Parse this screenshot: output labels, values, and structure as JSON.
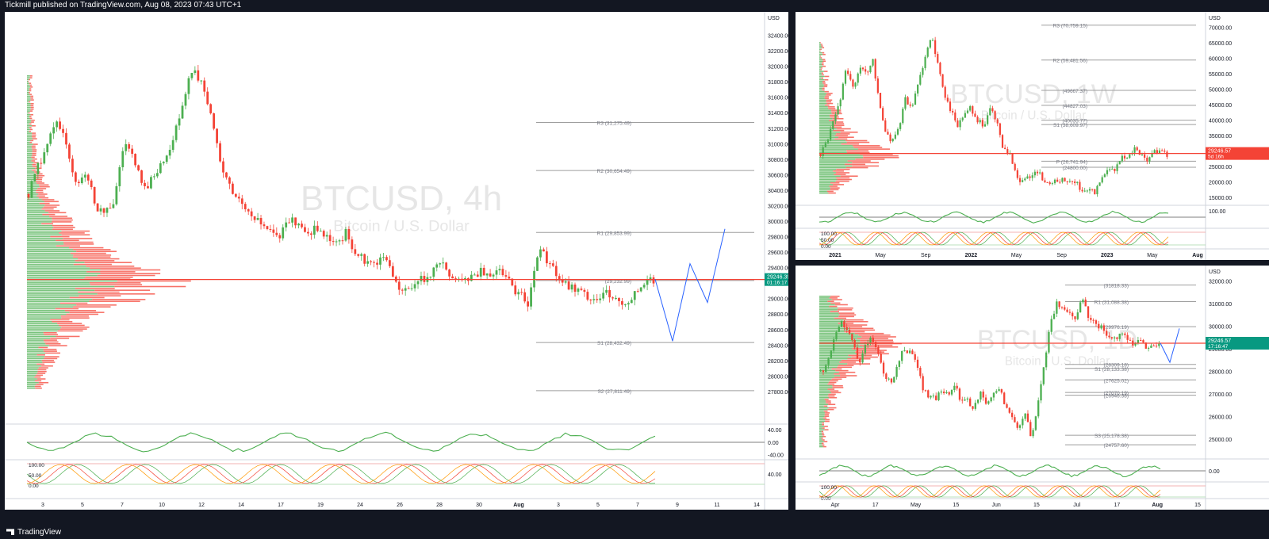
{
  "header": {
    "publisher_text": "Tickmill published on TradingView.com, Aug 08, 2023 07:43 UTC+1"
  },
  "footer": {
    "brand": "TradingView"
  },
  "colors": {
    "up": "#26a69a",
    "down": "#ef5350",
    "green": "#4caf50",
    "red": "#f44336",
    "grid": "#ececec"
  },
  "chart_data": [
    {
      "type": "candlestick",
      "symbol_watermark": "BTCUSD, 4h",
      "subtitle_watermark": "Bitcoin / U.S. Dollar",
      "currency": "USD",
      "ylim": [
        27400,
        32600
      ],
      "y_ticks": [
        "32400.00",
        "32200.00",
        "32000.00",
        "31800.00",
        "31600.00",
        "31400.00",
        "31200.00",
        "31000.00",
        "30800.00",
        "30600.00",
        "30400.00",
        "30200.00",
        "30000.00",
        "29800.00",
        "29600.00",
        "29400.00",
        "29200.00",
        "29000.00",
        "28800.00",
        "28600.00",
        "28400.00",
        "28200.00",
        "28000.00",
        "27800.00"
      ],
      "x_ticks": [
        "3",
        "5",
        "7",
        "10",
        "12",
        "14",
        "17",
        "19",
        "24",
        "26",
        "28",
        "30",
        "Aug",
        "3",
        "5",
        "7",
        "9",
        "11",
        "14"
      ],
      "pivot_levels": [
        {
          "label": "R3 (31,275.49)",
          "value": 31275
        },
        {
          "label": "R2 (30,654.49)",
          "value": 30654
        },
        {
          "label": "R1 (29,853.99)",
          "value": 29854
        },
        {
          "label": "(29,232.99)",
          "value": 29233
        },
        {
          "label": "S1 (28,432.49)",
          "value": 28432
        },
        {
          "label": "S2 (27,811.49)",
          "value": 27811
        }
      ],
      "last_price_label": "29246.39",
      "countdown_label": "01:16:17",
      "last_price": 29246,
      "close_path": [
        30350,
        30700,
        31000,
        31350,
        30900,
        30500,
        30650,
        30200,
        30100,
        30300,
        31050,
        30750,
        30400,
        30600,
        30800,
        31000,
        31500,
        31950,
        31800,
        31350,
        30700,
        30400,
        30250,
        30150,
        30000,
        29900,
        29800,
        30050,
        29950,
        29850,
        29900,
        29800,
        29700,
        29850,
        29600,
        29500,
        29450,
        29600,
        29200,
        29150,
        29200,
        29250,
        29350,
        29450,
        29300,
        29250,
        29300,
        29350,
        29250,
        29400,
        29200,
        29050,
        28950,
        29650,
        29500,
        29300,
        29150,
        29100,
        29050,
        29000,
        29100,
        29000,
        28950,
        29050,
        29150,
        29250
      ],
      "projection_path": [
        29250,
        28450,
        29450,
        28950,
        29900
      ],
      "rsi_ticks": [
        "40.00",
        "0.00",
        "-40.00"
      ],
      "stoch_ticks": [
        "100.00",
        "50.00",
        "0.00"
      ],
      "stoch_right_tick": "40.00"
    },
    {
      "type": "candlestick",
      "symbol_watermark": "BTCUSD, 1W",
      "subtitle_watermark": "Bitcoin / U.S. Dollar",
      "currency": "USD",
      "ylim": [
        13000,
        73000
      ],
      "y_ticks": [
        "70000.00",
        "65000.00",
        "60000.00",
        "55000.00",
        "50000.00",
        "45000.00",
        "40000.00",
        "35000.00",
        "30000.00",
        "25000.00",
        "20000.00",
        "15000.00"
      ],
      "x_ticks": [
        "2021",
        "May",
        "Sep",
        "2022",
        "May",
        "Sep",
        "2023",
        "May",
        "Aug"
      ],
      "pivot_levels": [
        {
          "label": "R3 (70,759.15)",
          "value": 70759
        },
        {
          "label": "R2 (59,481.56)",
          "value": 59481
        },
        {
          "label": "(49667.37)",
          "value": 49667
        },
        {
          "label": "(44827.03)",
          "value": 44827
        },
        {
          "label": "(40035.77)",
          "value": 40035
        },
        {
          "label": "S1 (38,609.97)",
          "value": 38610
        },
        {
          "label": "P (26,741.94)",
          "value": 26742
        },
        {
          "label": "(24800.00)",
          "value": 24800
        }
      ],
      "last_price_label": "29246.57",
      "countdown_label": "5d 16h",
      "last_price": 29246,
      "close_path": [
        29000,
        33000,
        40000,
        47000,
        57000,
        50000,
        58000,
        55000,
        60000,
        45000,
        36000,
        33000,
        38000,
        47000,
        44000,
        52000,
        61000,
        67000,
        57000,
        48000,
        43000,
        38000,
        42000,
        44000,
        40000,
        38000,
        44000,
        39000,
        30000,
        29000,
        21000,
        20000,
        22000,
        24000,
        21000,
        19500,
        20000,
        21000,
        19500,
        20500,
        16500,
        17000,
        16800,
        21000,
        23500,
        24000,
        28000,
        27500,
        30500,
        29500,
        27000,
        30500,
        29500,
        29000
      ],
      "rsi_tick": "100.00",
      "stoch_ticks": [
        "100.00",
        "50.00",
        "0.00"
      ]
    },
    {
      "type": "candlestick",
      "symbol_watermark": "BTCUSD, 1D",
      "subtitle_watermark": "Bitcoin / U.S. Dollar",
      "currency": "USD",
      "ylim": [
        24200,
        32400
      ],
      "y_ticks": [
        "32000.00",
        "31000.00",
        "30000.00",
        "29000.00",
        "28000.00",
        "27000.00",
        "26000.00",
        "25000.00"
      ],
      "x_ticks": [
        "Apr",
        "17",
        "May",
        "15",
        "Jun",
        "15",
        "Jul",
        "17",
        "Aug",
        "15"
      ],
      "pivot_levels": [
        {
          "label": "(31818.33)",
          "value": 31818
        },
        {
          "label": "R1 (31,088.38)",
          "value": 31088
        },
        {
          "label": "(29976.19)",
          "value": 29976
        },
        {
          "label": "S1 (28,133.38)",
          "value": 28133
        },
        {
          "label": "(28309.18)",
          "value": 28309
        },
        {
          "label": "(27625.02)",
          "value": 27625
        },
        {
          "label": "(27070.19)",
          "value": 27070
        },
        {
          "label": "(26946.38)",
          "value": 26946
        },
        {
          "label": "S3 (25,178.38)",
          "value": 25178
        },
        {
          "label": "(24757.60)",
          "value": 24757
        }
      ],
      "last_price_label": "29246.57",
      "countdown_label": "17:16:47",
      "last_price": 29246,
      "close_path": [
        28000,
        28200,
        29500,
        30200,
        30000,
        29300,
        28300,
        29300,
        29500,
        28900,
        27800,
        27500,
        28200,
        29000,
        28800,
        28400,
        27300,
        26900,
        26800,
        27200,
        27000,
        27400,
        26700,
        26800,
        26300,
        27100,
        26500,
        26900,
        27200,
        26500,
        25900,
        25500,
        26300,
        25000,
        26500,
        28300,
        30200,
        31000,
        30700,
        30600,
        30400,
        31300,
        30300,
        30100,
        29900,
        29600,
        29400,
        29700,
        29500,
        29200,
        29300,
        29100,
        29200,
        29250
      ],
      "projection_path": [
        29250,
        28400,
        29900
      ],
      "zero_tick": "0.00",
      "stoch_ticks": [
        "100.00",
        "0.00"
      ]
    }
  ]
}
